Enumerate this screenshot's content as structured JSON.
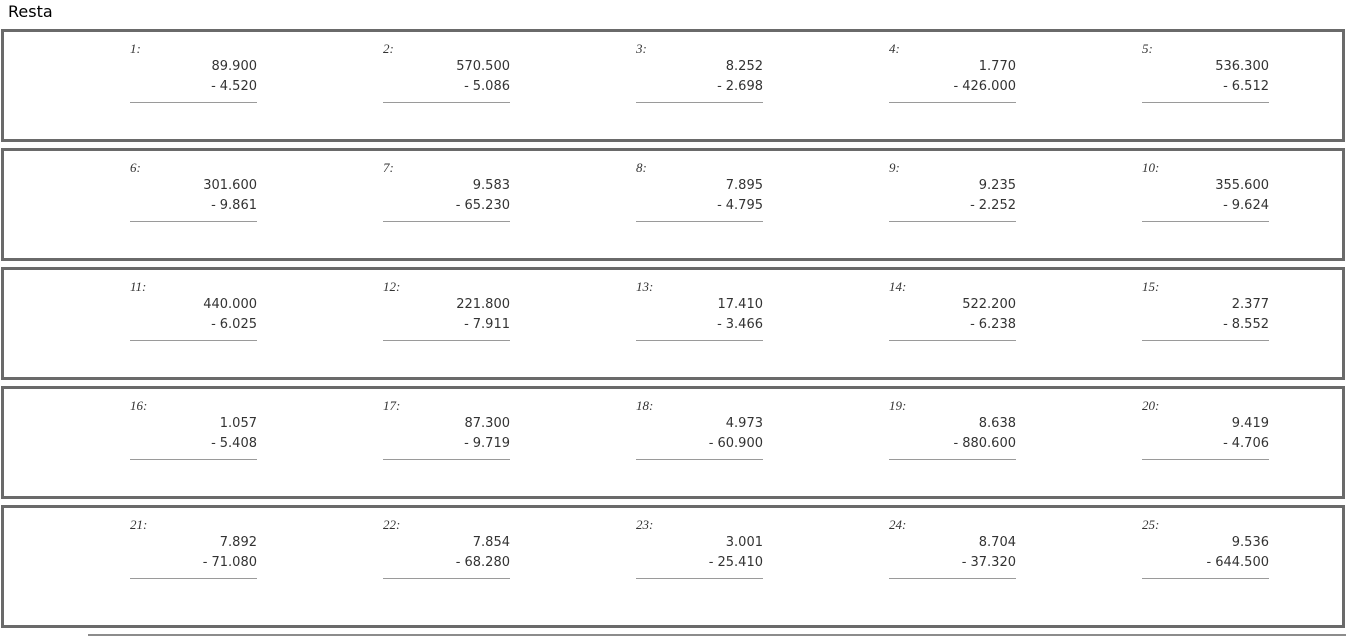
{
  "title": "Resta",
  "worksheet": {
    "columns_per_row": 5,
    "operator": "-",
    "problems": [
      {
        "label": "1:",
        "minuend": "89.900",
        "subtrahend": "4.520"
      },
      {
        "label": "2:",
        "minuend": "570.500",
        "subtrahend": "5.086"
      },
      {
        "label": "3:",
        "minuend": "8.252",
        "subtrahend": "2.698"
      },
      {
        "label": "4:",
        "minuend": "1.770",
        "subtrahend": "426.000"
      },
      {
        "label": "5:",
        "minuend": "536.300",
        "subtrahend": "6.512"
      },
      {
        "label": "6:",
        "minuend": "301.600",
        "subtrahend": "9.861"
      },
      {
        "label": "7:",
        "minuend": "9.583",
        "subtrahend": "65.230"
      },
      {
        "label": "8:",
        "minuend": "7.895",
        "subtrahend": "4.795"
      },
      {
        "label": "9:",
        "minuend": "9.235",
        "subtrahend": "2.252"
      },
      {
        "label": "10:",
        "minuend": "355.600",
        "subtrahend": "9.624"
      },
      {
        "label": "11:",
        "minuend": "440.000",
        "subtrahend": "6.025"
      },
      {
        "label": "12:",
        "minuend": "221.800",
        "subtrahend": "7.911"
      },
      {
        "label": "13:",
        "minuend": "17.410",
        "subtrahend": "3.466"
      },
      {
        "label": "14:",
        "minuend": "522.200",
        "subtrahend": "6.238"
      },
      {
        "label": "15:",
        "minuend": "2.377",
        "subtrahend": "8.552"
      },
      {
        "label": "16:",
        "minuend": "1.057",
        "subtrahend": "5.408"
      },
      {
        "label": "17:",
        "minuend": "87.300",
        "subtrahend": "9.719"
      },
      {
        "label": "18:",
        "minuend": "4.973",
        "subtrahend": "60.900"
      },
      {
        "label": "19:",
        "minuend": "8.638",
        "subtrahend": "880.600"
      },
      {
        "label": "20:",
        "minuend": "9.419",
        "subtrahend": "4.706"
      },
      {
        "label": "21:",
        "minuend": "7.892",
        "subtrahend": "71.080"
      },
      {
        "label": "22:",
        "minuend": "7.854",
        "subtrahend": "68.280"
      },
      {
        "label": "23:",
        "minuend": "3.001",
        "subtrahend": "25.410"
      },
      {
        "label": "24:",
        "minuend": "8.704",
        "subtrahend": "37.320"
      },
      {
        "label": "25:",
        "minuend": "9.536",
        "subtrahend": "644.500"
      }
    ],
    "colors": {
      "box_border": "#6a6a6a",
      "answer_line": "#9a9a9a",
      "text": "#333333",
      "title_text": "#000000"
    }
  }
}
